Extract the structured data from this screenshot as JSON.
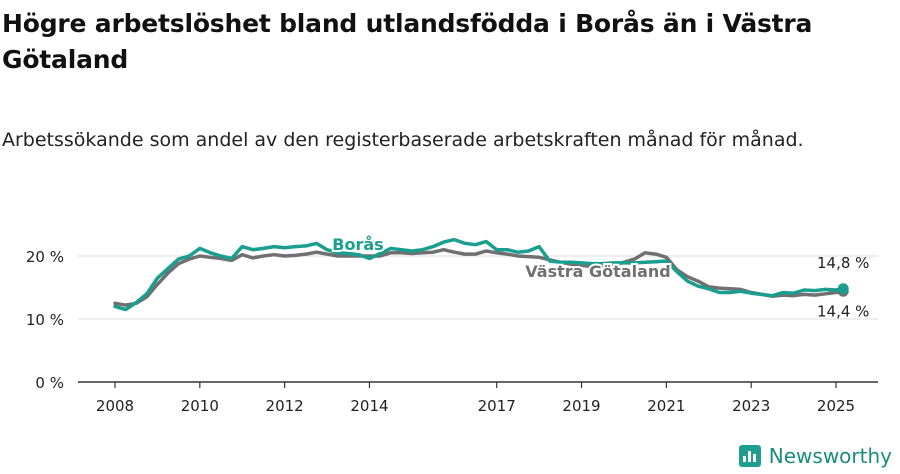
{
  "title": "Högre arbetslöshet bland utlandsfödda i Borås än i Västra Götaland",
  "subtitle": "Arbetssökande som andel av den registerbaserade arbetskraften månad för månad.",
  "brand": "Newsworthy",
  "colors": {
    "boras": "#1a9e8f",
    "vg": "#707070",
    "grid": "#dddddd",
    "axis": "#333333"
  },
  "chart_data": {
    "type": "line",
    "title": "Högre arbetslöshet bland utlandsfödda i Borås än i Västra Götaland",
    "subtitle": "Arbetssökande som andel av den registerbaserade arbetskraften månad för månad.",
    "xlim": [
      2007.5,
      2026
    ],
    "ylim": [
      0,
      25
    ],
    "grid": true,
    "y_ticks": [
      0,
      10,
      20
    ],
    "y_tick_labels": [
      "0 %",
      "10 %",
      "20 %"
    ],
    "x_ticks": [
      2008,
      2010,
      2012,
      2014,
      2017,
      2019,
      2021,
      2023,
      2025
    ],
    "x_tick_labels": [
      "2008",
      "2010",
      "2012",
      "2014",
      "2017",
      "2019",
      "2021",
      "2023",
      "2025"
    ],
    "series": [
      {
        "name": "Borås",
        "color": "#1a9e8f",
        "end_label": "14,8 %",
        "x": [
          2008.0,
          2008.25,
          2008.5,
          2008.75,
          2009.0,
          2009.25,
          2009.5,
          2009.75,
          2010.0,
          2010.25,
          2010.5,
          2010.75,
          2011.0,
          2011.25,
          2011.5,
          2011.75,
          2012.0,
          2012.25,
          2012.5,
          2012.75,
          2013.0,
          2013.25,
          2013.5,
          2013.75,
          2014.0,
          2014.25,
          2014.5,
          2014.75,
          2015.0,
          2015.25,
          2015.5,
          2015.75,
          2016.0,
          2016.25,
          2016.5,
          2016.75,
          2017.0,
          2017.25,
          2017.5,
          2017.75,
          2018.0,
          2018.25,
          2018.5,
          2018.75,
          2019.0,
          2019.25,
          2019.5,
          2019.75,
          2020.0,
          2020.25,
          2020.5,
          2020.75,
          2021.0,
          2021.25,
          2021.5,
          2021.75,
          2022.0,
          2022.25,
          2022.5,
          2022.75,
          2023.0,
          2023.25,
          2023.5,
          2023.75,
          2024.0,
          2024.25,
          2024.5,
          2024.75,
          2025.0,
          2025.17
        ],
        "y": [
          12.0,
          11.5,
          12.6,
          14.0,
          16.5,
          18.0,
          19.5,
          20.0,
          21.2,
          20.5,
          20.0,
          19.6,
          21.5,
          21.0,
          21.2,
          21.5,
          21.3,
          21.5,
          21.6,
          22.0,
          21.0,
          20.5,
          20.4,
          20.2,
          19.6,
          20.4,
          21.2,
          21.0,
          20.8,
          21.0,
          21.5,
          22.2,
          22.6,
          22.0,
          21.8,
          22.3,
          21.0,
          21.0,
          20.6,
          20.8,
          21.5,
          19.2,
          19.0,
          19.0,
          18.9,
          18.8,
          18.8,
          18.9,
          18.9,
          18.9,
          19.0,
          19.1,
          19.2,
          17.5,
          16.0,
          15.2,
          14.8,
          14.2,
          14.2,
          14.4,
          14.1,
          13.9,
          13.7,
          14.2,
          14.1,
          14.6,
          14.5,
          14.7,
          14.6,
          14.8
        ]
      },
      {
        "name": "Västra Götaland",
        "color": "#707070",
        "end_label": "14,4 %",
        "x": [
          2008.0,
          2008.25,
          2008.5,
          2008.75,
          2009.0,
          2009.25,
          2009.5,
          2009.75,
          2010.0,
          2010.25,
          2010.5,
          2010.75,
          2011.0,
          2011.25,
          2011.5,
          2011.75,
          2012.0,
          2012.25,
          2012.5,
          2012.75,
          2013.0,
          2013.25,
          2013.5,
          2013.75,
          2014.0,
          2014.25,
          2014.5,
          2014.75,
          2015.0,
          2015.25,
          2015.5,
          2015.75,
          2016.0,
          2016.25,
          2016.5,
          2016.75,
          2017.0,
          2017.25,
          2017.5,
          2017.75,
          2018.0,
          2018.25,
          2018.5,
          2018.75,
          2019.0,
          2019.25,
          2019.5,
          2019.75,
          2020.0,
          2020.25,
          2020.5,
          2020.75,
          2021.0,
          2021.25,
          2021.5,
          2021.75,
          2022.0,
          2022.25,
          2022.5,
          2022.75,
          2023.0,
          2023.25,
          2023.5,
          2023.75,
          2024.0,
          2024.25,
          2024.5,
          2024.75,
          2025.0,
          2025.17
        ],
        "y": [
          12.5,
          12.2,
          12.5,
          13.5,
          15.5,
          17.3,
          18.8,
          19.5,
          20.0,
          19.8,
          19.6,
          19.3,
          20.2,
          19.7,
          20.0,
          20.2,
          20.0,
          20.1,
          20.3,
          20.6,
          20.3,
          20.0,
          20.0,
          20.0,
          20.0,
          20.0,
          20.5,
          20.5,
          20.4,
          20.5,
          20.6,
          21.0,
          20.6,
          20.3,
          20.3,
          20.8,
          20.5,
          20.3,
          20.0,
          19.9,
          19.8,
          19.4,
          19.0,
          18.7,
          18.5,
          18.3,
          18.3,
          18.5,
          19.0,
          19.5,
          20.5,
          20.3,
          19.8,
          17.8,
          16.7,
          16.0,
          15.1,
          14.9,
          14.8,
          14.7,
          14.2,
          13.9,
          13.6,
          13.8,
          13.7,
          13.9,
          13.8,
          14.0,
          14.2,
          14.4
        ]
      }
    ]
  }
}
